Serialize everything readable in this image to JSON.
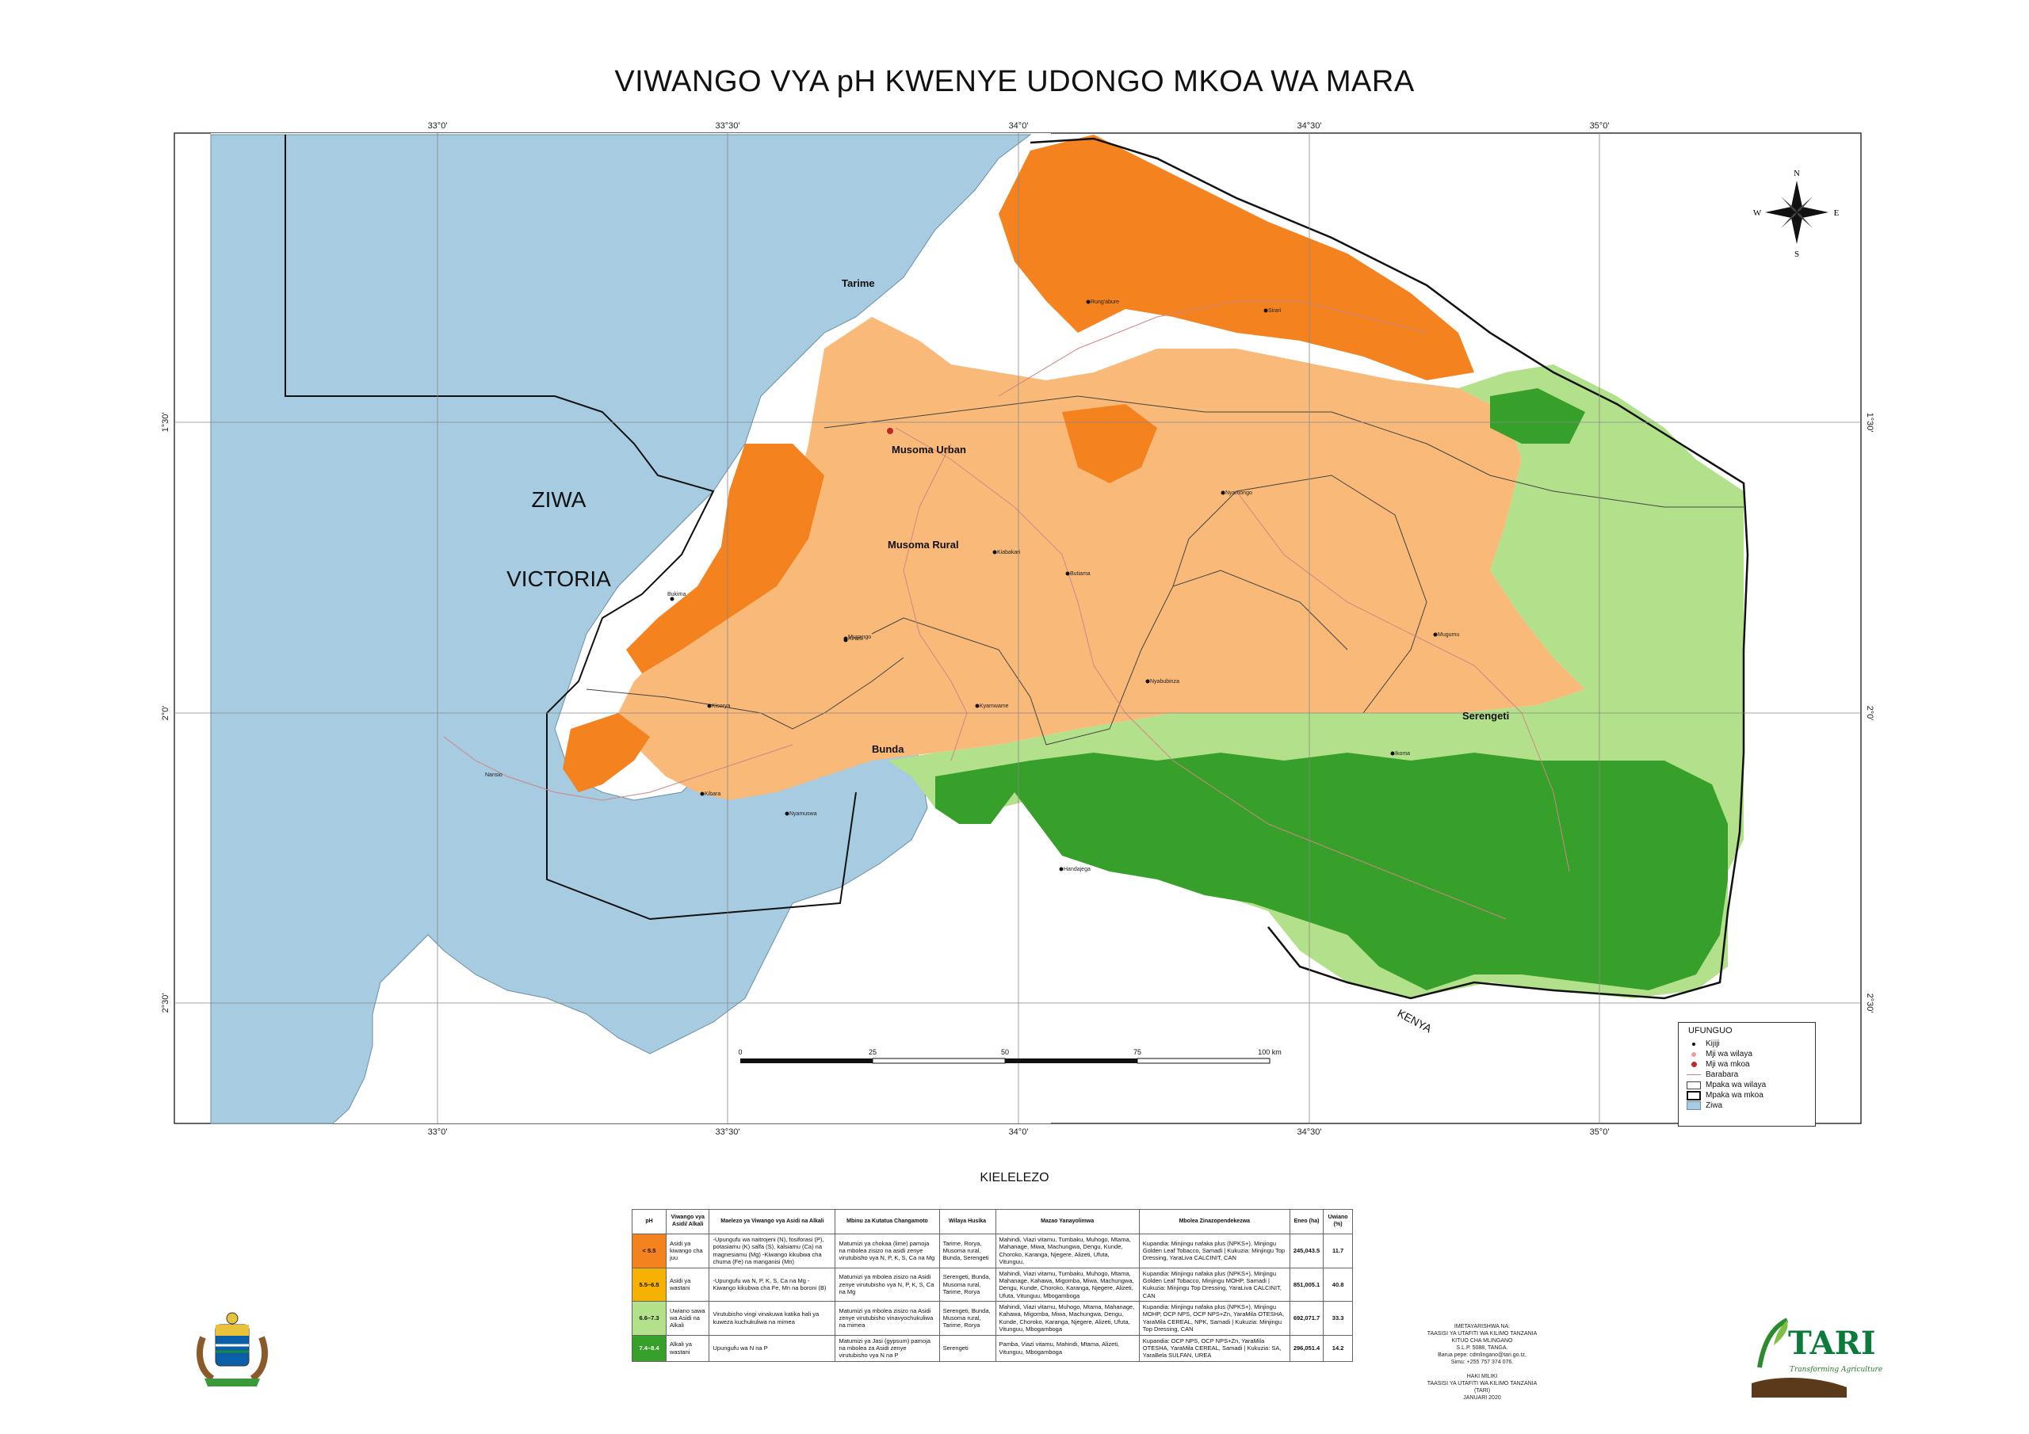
{
  "title": "VIWANGO VYA pH KWENYE UDONGO MKOA WA MARA",
  "map": {
    "lake_name_1": "ZIWA",
    "lake_name_2": "VICTORIA",
    "country_label": "KENYA",
    "longitude_ticks": [
      "33°0'",
      "33°30'",
      "34°0'",
      "34°30'",
      "35°0'"
    ],
    "latitude_ticks": [
      "1°30'",
      "2°0'",
      "2°30'"
    ],
    "district_labels": [
      "Tarime",
      "Musoma Urban",
      "Musoma Rural",
      "Bunda",
      "Serengeti"
    ],
    "place_labels": [
      "Bukima",
      "Kinesi",
      "Kibara",
      "Nansio",
      "Nyamuswa",
      "Handajega",
      "Mugumu",
      "Nyamongo",
      "Sirari",
      "Kiabakari",
      "Butiama",
      "Kisorya",
      "Ikoma",
      "Nyabubinza",
      "Mugango",
      "Rung'abure",
      "Kyamwame"
    ],
    "compass": {
      "n": "N",
      "s": "S",
      "e": "E",
      "w": "W"
    },
    "scale": {
      "labels": [
        "0",
        "25",
        "50",
        "75",
        "100 km"
      ]
    }
  },
  "colors": {
    "lake": "#a7cbe0",
    "ph_lt55": "#f3821f",
    "ph_55_65": "#f9b978",
    "ph_66_73": "#b3e08a",
    "ph_74_84": "#36a02b",
    "roads": "#d08585"
  },
  "legend": {
    "title": "UFUNGUO",
    "items": [
      "Kijiji",
      "Mji wa wilaya",
      "Mji wa mkoa",
      "Barabara",
      "Mpaka wa wilaya",
      "Mpaka wa mkoa",
      "Ziwa"
    ]
  },
  "kielelezo": {
    "title": "KIELELEZO",
    "headers": [
      "pH",
      "Viwango vya Asidi/ Alkali",
      "Maelezo ya Viwango vya Asidi na Alkali",
      "Mbinu za Kutatua Changamoto",
      "Wilaya Husika",
      "Mazao Yanayolimwa",
      "Mbolea Zinazopendekezwa",
      "Eneo (ha)",
      "Uwiano (%)"
    ],
    "rows": [
      {
        "ph": "< 5.5",
        "level": "Asidi ya kiwango cha juu",
        "desc": "-Upungufu wa naitrojeni (N), fosiforasi (P), potasiamu (K) salfa (S), kalsiamu (Ca) na magnesiamu (Mg) -Kiwango kikubwa cha chuma (Fe) na manganisi (Mn)",
        "method": "Matumizi ya chokaa (lime) pamoja na mbolea zisizo na asidi zenye virutubisho vya N, P, K, S, Ca na Mg",
        "district": "Tarime, Rorya, Musoma rural, Bunda, Serengeti",
        "crops": "Mahindi, Viazi vitamu, Tumbaku, Muhogo, Mtama, Mahanage, Miwa, Machungwa, Dengu, Kunde, Choroko, Karanga, Njegere, Alizeti, Ufuta, Vitunguu,",
        "fert": "Kupandia: Minjingu nafaka plus (NPKS+), Minjingu Golden Leaf Tobacco, Samadi | Kukuzia: Minjingu Top Dressing, YaraLiva CALCINIT, CAN",
        "area": "245,043.5",
        "pct": "11.7"
      },
      {
        "ph": "5.5–6.5",
        "level": "Asidi ya wastani",
        "desc": "-Upungufu wa N, P, K, S, Ca na Mg -Kiwango kikubwa cha Fe, Mn na boroni (B)",
        "method": "Matumizi ya mbolea zisizo na Asidi zenye virutubisho vya N, P, K, S, Ca na Mg",
        "district": "Serengeti, Bunda, Musoma rural, Tarime, Rorya",
        "crops": "Mahindi, Viazi vitamu, Tumbaku, Muhogo, Mtama, Mahanage, Kahawa, Migomba, Miwa, Machungwa, Dengu, Kunde, Choroko, Karanga, Njegere, Alizeti, Ufuta, Vitunguu, Mbogamboga",
        "fert": "Kupandia: Minjingu nafaka plus (NPKS+), Minjingu Golden Leaf Tobacco, Minjingu MOHP, Samadi | Kukuzia: Minjingu Top Dressing, YaraLiva CALCINIT, CAN",
        "area": "851,005.1",
        "pct": "40.8"
      },
      {
        "ph": "6.6–7.3",
        "level": "Uwiano sawa wa Asidi na Alkali",
        "desc": "Virutubisho vingi vinakuwa katika hali ya kuweza kuchukuliwa na mimea",
        "method": "Matumizi ya mbolea zisizo na Asidi zenye virutubisho vinavyochukuliwa na mimea",
        "district": "Serengeti, Bunda, Musoma rural, Tarime, Rorya",
        "crops": "Mahindi, Viazi vitamu, Muhogo, Mtama, Mahanage, Kahawa, Migomba, Miwa, Machungwa, Dengu, Kunde, Choroko, Karanga, Njegere, Alizeti, Ufuta, Vitunguu, Mbogamboga",
        "fert": "Kupandia: Minjingu nafaka plus (NPKS+), Minjingu MOHP, OCP NPS, OCP NPS+Zn, YaraMila OTESHA, YaraMila CEREAL, NPK, Samadi | Kukuzia: Minjingu Top Dressing, CAN",
        "area": "692,071.7",
        "pct": "33.3"
      },
      {
        "ph": "7.4–8.4",
        "level": "Alkali ya wastani",
        "desc": "Upungufu wa N na P",
        "method": "Matumizi ya Jasi (gypsum) pamoja na mbolea za Asidi zenye virutubisho vya N na P",
        "district": "Serengeti",
        "crops": "Pamba, Viazi vitamu, Mahindi, Mtama, Alizeti, Vitunguu, Mbogamboga",
        "fert": "Kupandia: OCP NPS, OCP NPS+Zn, YaraMila OTESHA, YaraMila CEREAL, Samadi | Kukuzia: SA, YaraBela SULFAN, UREA",
        "area": "296,051.4",
        "pct": "14.2"
      }
    ]
  },
  "footer": {
    "line1": "IMETAYARISHWA NA:",
    "line2": "TAASISI YA UTAFITI WA KILIMO TANZANIA",
    "line3": "KITUO CHA MLINGANO",
    "line4": "S.L.P. 5088, TANGA.",
    "line5": "Barua pepe: cdmlingano@tari.go.tz,",
    "line6": "Simu: +255 757 374 076.",
    "line7": "HAKI MILIKI",
    "line8": "TAASISI YA UTAFITI WA KILIMO TANZANIA (TARI)",
    "line9": "JANUARI 2020"
  },
  "logo": {
    "name": "TARI",
    "tagline": "Transforming Agriculture"
  }
}
